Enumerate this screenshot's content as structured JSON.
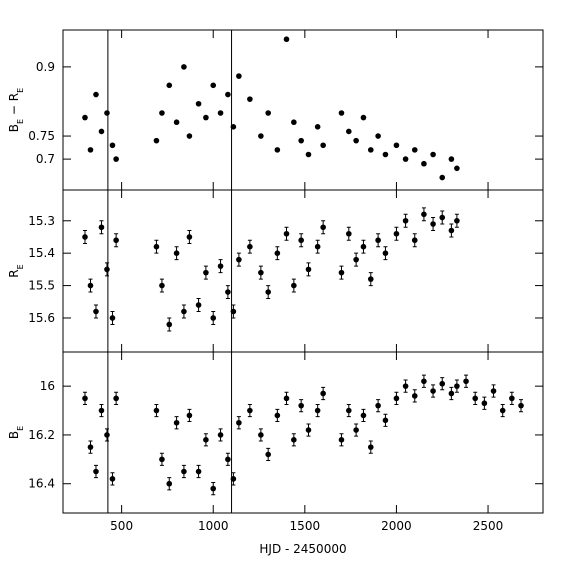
{
  "chart_data": [
    {
      "type": "scatter",
      "ylabel": "B_E − R_E",
      "x": [
        300,
        330,
        360,
        390,
        420,
        450,
        470,
        690,
        720,
        760,
        800,
        840,
        870,
        920,
        960,
        1000,
        1040,
        1080,
        1110,
        1140,
        1200,
        1260,
        1300,
        1350,
        1400,
        1440,
        1480,
        1520,
        1570,
        1600,
        1700,
        1740,
        1780,
        1820,
        1860,
        1900,
        1940,
        2000,
        2050,
        2100,
        2150,
        2200,
        2250,
        2300,
        2330
      ],
      "values": [
        0.79,
        0.72,
        0.84,
        0.76,
        0.8,
        0.73,
        0.7,
        0.74,
        0.8,
        0.86,
        0.78,
        0.9,
        0.75,
        0.82,
        0.79,
        0.86,
        0.8,
        0.84,
        0.77,
        0.88,
        0.83,
        0.75,
        0.8,
        0.72,
        0.96,
        0.78,
        0.74,
        0.71,
        0.77,
        0.73,
        0.8,
        0.76,
        0.74,
        0.79,
        0.72,
        0.75,
        0.71,
        0.73,
        0.7,
        0.72,
        0.69,
        0.71,
        0.66,
        0.7,
        0.68
      ],
      "xlim": [
        180,
        2800
      ],
      "ylim": [
        0.633,
        0.98
      ],
      "yticks": [
        0.9,
        0.75,
        0.7
      ],
      "vlines": [
        425,
        1100
      ],
      "color": "#000000"
    },
    {
      "type": "scatter",
      "ylabel": "R_E",
      "x": [
        300,
        330,
        360,
        390,
        420,
        450,
        470,
        690,
        720,
        760,
        800,
        840,
        870,
        920,
        960,
        1000,
        1040,
        1080,
        1110,
        1140,
        1200,
        1260,
        1300,
        1350,
        1400,
        1440,
        1480,
        1520,
        1570,
        1600,
        1700,
        1740,
        1780,
        1820,
        1860,
        1900,
        1940,
        2000,
        2050,
        2100,
        2150,
        2200,
        2250,
        2300,
        2330
      ],
      "values": [
        15.35,
        15.5,
        15.58,
        15.32,
        15.45,
        15.6,
        15.36,
        15.38,
        15.5,
        15.62,
        15.4,
        15.58,
        15.35,
        15.56,
        15.46,
        15.6,
        15.44,
        15.52,
        15.58,
        15.42,
        15.38,
        15.46,
        15.52,
        15.4,
        15.34,
        15.5,
        15.36,
        15.45,
        15.38,
        15.32,
        15.46,
        15.34,
        15.42,
        15.38,
        15.48,
        15.36,
        15.4,
        15.34,
        15.3,
        15.36,
        15.28,
        15.31,
        15.29,
        15.33,
        15.3
      ],
      "errors": [
        0.02,
        0.02,
        0.02,
        0.02,
        0.02,
        0.02,
        0.02,
        0.02,
        0.02,
        0.02,
        0.02,
        0.02,
        0.02,
        0.02,
        0.02,
        0.02,
        0.02,
        0.02,
        0.02,
        0.02,
        0.02,
        0.02,
        0.02,
        0.02,
        0.02,
        0.02,
        0.02,
        0.02,
        0.02,
        0.02,
        0.02,
        0.02,
        0.02,
        0.02,
        0.02,
        0.02,
        0.02,
        0.02,
        0.02,
        0.02,
        0.02,
        0.02,
        0.02,
        0.02,
        0.02
      ],
      "xlim": [
        180,
        2800
      ],
      "ylim": [
        15.705,
        15.205
      ],
      "yticks": [
        15.3,
        15.4,
        15.5,
        15.6
      ],
      "vlines": [
        425,
        1100
      ],
      "color": "#000000"
    },
    {
      "type": "scatter",
      "ylabel": "B_E",
      "xlabel": "HJD - 2450000",
      "x": [
        300,
        330,
        360,
        390,
        420,
        450,
        470,
        690,
        720,
        760,
        800,
        840,
        870,
        920,
        960,
        1000,
        1040,
        1080,
        1110,
        1140,
        1200,
        1260,
        1300,
        1350,
        1400,
        1440,
        1480,
        1520,
        1570,
        1600,
        1700,
        1740,
        1780,
        1820,
        1860,
        1900,
        1940,
        2000,
        2050,
        2100,
        2150,
        2200,
        2250,
        2300,
        2330,
        2380,
        2430,
        2480,
        2530,
        2580,
        2630,
        2680
      ],
      "values": [
        16.05,
        16.25,
        16.35,
        16.1,
        16.2,
        16.38,
        16.05,
        16.1,
        16.3,
        16.4,
        16.15,
        16.35,
        16.12,
        16.35,
        16.22,
        16.42,
        16.2,
        16.3,
        16.38,
        16.15,
        16.1,
        16.2,
        16.28,
        16.12,
        16.05,
        16.22,
        16.08,
        16.18,
        16.1,
        16.03,
        16.22,
        16.1,
        16.18,
        16.12,
        16.25,
        16.08,
        16.14,
        16.05,
        16.0,
        16.04,
        15.98,
        16.02,
        15.99,
        16.03,
        16.0,
        15.98,
        16.05,
        16.07,
        16.02,
        16.1,
        16.05,
        16.08
      ],
      "errors": [
        0.025,
        0.025,
        0.025,
        0.025,
        0.025,
        0.025,
        0.025,
        0.025,
        0.025,
        0.025,
        0.025,
        0.025,
        0.025,
        0.025,
        0.025,
        0.025,
        0.025,
        0.025,
        0.025,
        0.025,
        0.025,
        0.025,
        0.025,
        0.025,
        0.025,
        0.025,
        0.025,
        0.025,
        0.025,
        0.025,
        0.025,
        0.025,
        0.025,
        0.025,
        0.025,
        0.025,
        0.025,
        0.025,
        0.025,
        0.025,
        0.025,
        0.025,
        0.025,
        0.025,
        0.025,
        0.025,
        0.025,
        0.025,
        0.025,
        0.025,
        0.025,
        0.025
      ],
      "xlim": [
        180,
        2800
      ],
      "ylim": [
        16.52,
        15.86
      ],
      "yticks": [
        16,
        16.2,
        16.4
      ],
      "xticks": [
        500,
        1000,
        1500,
        2000,
        2500
      ],
      "vlines": [
        425,
        1100
      ],
      "color": "#000000"
    }
  ]
}
